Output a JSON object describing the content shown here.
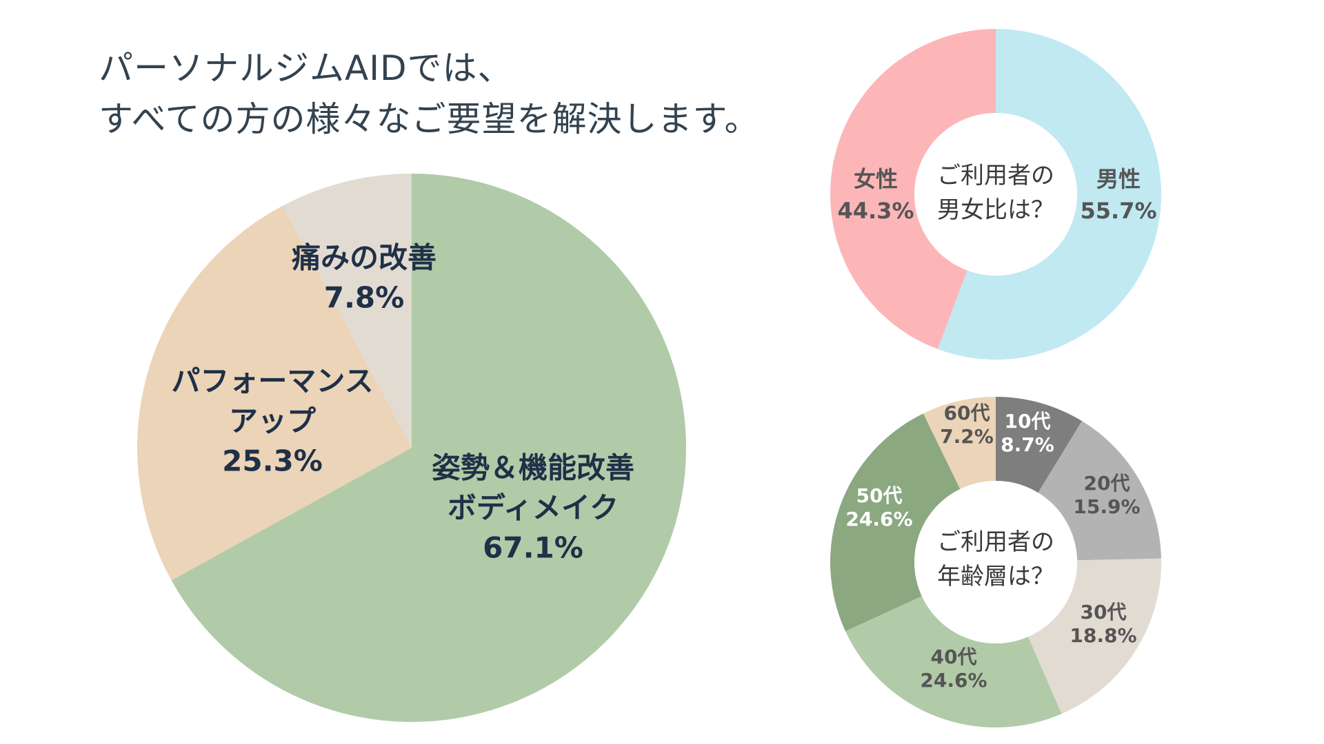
{
  "heading": {
    "line1": "パーソナルジムAIDでは、",
    "line2": "すべての方の様々なご要望を解決します。"
  },
  "chart_data": [
    {
      "type": "pie",
      "title": "",
      "slices": [
        {
          "label_lines": [
            "姿勢＆機能改善",
            "ボディメイク"
          ],
          "value": 67.1,
          "value_text": "67.1%",
          "color": "#b1cba8"
        },
        {
          "label_lines": [
            "パフォーマンス",
            "アップ"
          ],
          "value": 25.3,
          "value_text": "25.3%",
          "color": "#ebd4b7"
        },
        {
          "label_lines": [
            "痛みの改善"
          ],
          "value": 7.8,
          "value_text": "7.8%",
          "color": "#e2dbd1"
        }
      ],
      "label_color": "#1f3047"
    },
    {
      "type": "pie",
      "title": "ご利用者の男女比は？",
      "title_lines": [
        "ご利用者の",
        "男女比は？"
      ],
      "slices": [
        {
          "label_lines": [
            "男性"
          ],
          "value": 55.7,
          "value_text": "55.7%",
          "color": "#c0e9f2"
        },
        {
          "label_lines": [
            "女性"
          ],
          "value": 44.3,
          "value_text": "44.3%",
          "color": "#fdb6b8"
        }
      ],
      "label_color": "#555555"
    },
    {
      "type": "pie",
      "title": "ご利用者の年齢層は？",
      "title_lines": [
        "ご利用者の",
        "年齢層は？"
      ],
      "slices": [
        {
          "label_lines": [
            "10代"
          ],
          "value": 8.7,
          "value_text": "8.7%",
          "color": "#7e7e7e",
          "label_color": "#ffffff"
        },
        {
          "label_lines": [
            "20代"
          ],
          "value": 15.9,
          "value_text": "15.9%",
          "color": "#b3b3b3",
          "label_color": "#555555"
        },
        {
          "label_lines": [
            "30代"
          ],
          "value": 18.8,
          "value_text": "18.8%",
          "color": "#e2dbd1",
          "label_color": "#555555"
        },
        {
          "label_lines": [
            "40代"
          ],
          "value": 24.6,
          "value_text": "24.6%",
          "color": "#b1cba8",
          "label_color": "#555555"
        },
        {
          "label_lines": [
            "50代"
          ],
          "value": 24.6,
          "value_text": "24.6%",
          "color": "#8ba880",
          "label_color": "#ffffff"
        },
        {
          "label_lines": [
            "60代"
          ],
          "value": 7.2,
          "value_text": "7.2%",
          "color": "#ebd4b7",
          "label_color": "#555555"
        }
      ]
    }
  ]
}
